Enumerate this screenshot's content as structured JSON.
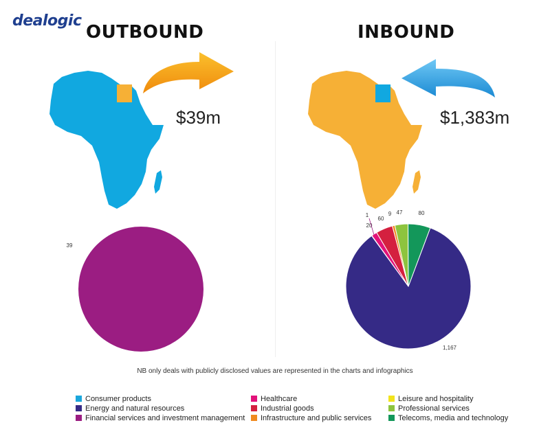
{
  "brand": {
    "logo_text": "dealogic"
  },
  "headings": {
    "outbound": "OUTBOUND",
    "inbound": "INBOUND"
  },
  "amounts": {
    "outbound": "$39m",
    "inbound": "$1,383m"
  },
  "note": "NB only deals with publicly disclosed values are represented in the charts and infographics",
  "colors": {
    "map_blue": "#11a8e0",
    "map_orange": "#f6b036",
    "arrow_orange": "#f39c12",
    "arrow_blue": "#3aa9e6"
  },
  "legend": [
    {
      "label": "Consumer products",
      "color": "#1aa6dc"
    },
    {
      "label": "Healthcare",
      "color": "#e2127a"
    },
    {
      "label": "Leisure and hospitality",
      "color": "#f2e31c"
    },
    {
      "label": "Energy and natural resources",
      "color": "#352a86"
    },
    {
      "label": "Industrial goods",
      "color": "#d4203f"
    },
    {
      "label": "Professional services",
      "color": "#8dc43e"
    },
    {
      "label": "Financial services and investment management",
      "color": "#9b1d82"
    },
    {
      "label": "Infrastructure and public services",
      "color": "#f08a1f"
    },
    {
      "label": "Telecoms, media and technology",
      "color": "#13975a"
    }
  ],
  "chart_data": [
    {
      "type": "pie",
      "name": "outbound",
      "slices": [
        {
          "category": "Financial services and investment management",
          "value": 39,
          "label": "39",
          "color": "#9b1d82"
        }
      ]
    },
    {
      "type": "pie",
      "name": "inbound",
      "slices": [
        {
          "category": "Energy and natural resources",
          "value": 1167,
          "label": "1,167",
          "color": "#352a86"
        },
        {
          "category": "Financial services and investment management",
          "value": 1,
          "label": "1",
          "color": "#9b1d82"
        },
        {
          "category": "Healthcare",
          "value": 20,
          "label": "20",
          "color": "#e2127a"
        },
        {
          "category": "Industrial goods",
          "value": 60,
          "label": "60",
          "color": "#d4203f"
        },
        {
          "category": "Infrastructure and public services",
          "value": 9,
          "label": "9",
          "color": "#f08a1f"
        },
        {
          "category": "Professional services",
          "value": 47,
          "label": "47",
          "color": "#8dc43e"
        },
        {
          "category": "Telecoms, media and technology",
          "value": 80,
          "label": "80",
          "color": "#13975a"
        }
      ]
    }
  ]
}
